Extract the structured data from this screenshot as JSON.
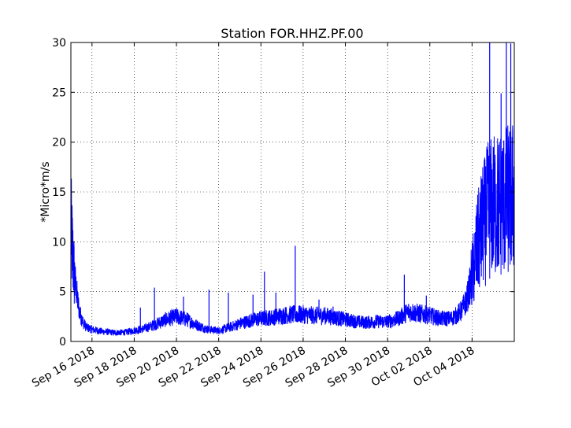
{
  "chart_data": {
    "type": "line",
    "title": "Station FOR.HHZ.PF.00",
    "ylabel": "*Micro*m/s",
    "xlabel": "",
    "ylim": [
      0,
      30
    ],
    "xlim": [
      "2018-09-15",
      "2018-10-06"
    ],
    "grid": true,
    "y_ticks": [
      0,
      5,
      10,
      15,
      20,
      25,
      30
    ],
    "x_ticks": [
      "2018-09-16",
      "2018-09-18",
      "2018-09-20",
      "2018-09-22",
      "2018-09-24",
      "2018-09-26",
      "2018-09-28",
      "2018-09-30",
      "2018-10-02",
      "2018-10-04"
    ],
    "x_tick_labels": [
      "Sep 16 2018",
      "Sep 18 2018",
      "Sep 20 2018",
      "Sep 22 2018",
      "Sep 24 2018",
      "Sep 26 2018",
      "Sep 28 2018",
      "Sep 30 2018",
      "Oct 02 2018",
      "Oct 04 2018"
    ],
    "series": [
      {
        "color": "#0000ff",
        "points": [
          [
            "2018-09-15",
            11.3
          ],
          [
            "2018-09-15T02:00",
            8.8
          ],
          [
            "2018-09-15T04:00",
            6.5
          ],
          [
            "2018-09-15T06:00",
            5.2
          ],
          [
            "2018-09-15T08:00",
            3.9
          ],
          [
            "2018-09-15T10:00",
            2.9
          ],
          [
            "2018-09-15T14:00",
            1.9
          ],
          [
            "2018-09-15T18:00",
            1.4
          ],
          [
            "2018-09-16",
            1.2
          ],
          [
            "2018-09-16T12:00",
            1.0
          ],
          [
            "2018-09-17",
            0.9
          ],
          [
            "2018-09-17T12:00",
            0.9
          ],
          [
            "2018-09-18",
            1.1
          ],
          [
            "2018-09-18T12:00",
            1.3
          ],
          [
            "2018-09-19",
            1.7
          ],
          [
            "2018-09-19T12:00",
            2.2
          ],
          [
            "2018-09-20",
            2.5
          ],
          [
            "2018-09-20T12:00",
            2.2
          ],
          [
            "2018-09-21",
            1.6
          ],
          [
            "2018-09-21T12:00",
            1.2
          ],
          [
            "2018-09-22",
            1.1
          ],
          [
            "2018-09-22T12:00",
            1.4
          ],
          [
            "2018-09-23",
            1.8
          ],
          [
            "2018-09-23T12:00",
            2.1
          ],
          [
            "2018-09-24",
            2.3
          ],
          [
            "2018-09-24T12:00",
            2.4
          ],
          [
            "2018-09-25",
            2.6
          ],
          [
            "2018-09-25T12:00",
            2.7
          ],
          [
            "2018-09-26",
            2.7
          ],
          [
            "2018-09-26T12:00",
            2.6
          ],
          [
            "2018-09-27",
            2.6
          ],
          [
            "2018-09-27T12:00",
            2.4
          ],
          [
            "2018-09-28",
            2.2
          ],
          [
            "2018-09-28T12:00",
            2.0
          ],
          [
            "2018-09-29",
            1.9
          ],
          [
            "2018-09-29T12:00",
            2.0
          ],
          [
            "2018-09-30",
            2.0
          ],
          [
            "2018-09-30T12:00",
            2.3
          ],
          [
            "2018-10-01",
            3.0
          ],
          [
            "2018-10-01T12:00",
            2.8
          ],
          [
            "2018-10-02",
            2.6
          ],
          [
            "2018-10-02T12:00",
            2.3
          ],
          [
            "2018-10-03",
            2.3
          ],
          [
            "2018-10-03T06:00",
            2.6
          ],
          [
            "2018-10-03T12:00",
            3.1
          ],
          [
            "2018-10-03T18:00",
            4.2
          ],
          [
            "2018-10-04",
            6.5
          ],
          [
            "2018-10-04T06:00",
            9.5
          ],
          [
            "2018-10-04T12:00",
            11.5
          ],
          [
            "2018-10-04T18:00",
            13.0
          ],
          [
            "2018-10-05",
            13.5
          ],
          [
            "2018-10-05T12:00",
            14.0
          ],
          [
            "2018-10-06",
            14.5
          ]
        ],
        "spikes": [
          [
            "2018-09-18T07:00",
            3.4
          ],
          [
            "2018-09-18T23:00",
            5.4
          ],
          [
            "2018-09-20T08:00",
            4.5
          ],
          [
            "2018-09-21T13:00",
            5.2
          ],
          [
            "2018-09-22T11:00",
            4.9
          ],
          [
            "2018-09-23T15:00",
            4.7
          ],
          [
            "2018-09-24T04:00",
            7.0
          ],
          [
            "2018-09-24T17:00",
            4.9
          ],
          [
            "2018-09-25T15:00",
            9.6
          ],
          [
            "2018-09-26T18:00",
            4.2
          ],
          [
            "2018-09-27T10:00",
            3.5
          ],
          [
            "2018-09-30T19:00",
            6.7
          ],
          [
            "2018-10-01T20:00",
            4.6
          ],
          [
            "2018-10-03T20:00",
            5.6
          ],
          [
            "2018-10-04T20:00",
            30.0
          ],
          [
            "2018-10-05T09:00",
            24.9
          ],
          [
            "2018-10-05T15:00",
            30.0
          ],
          [
            "2018-10-05T20:00",
            29.9
          ]
        ]
      }
    ]
  }
}
